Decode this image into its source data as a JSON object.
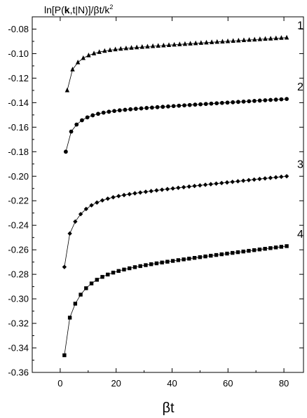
{
  "chart_data": {
    "type": "scatter",
    "title": "",
    "ylabel_parts": [
      "ln[P(",
      "k",
      ",t|N)]/βt/k",
      "2"
    ],
    "xlabel": "βt",
    "xlim": [
      -10,
      87
    ],
    "ylim": [
      -0.36,
      -0.07
    ],
    "x_ticks": [
      0,
      20,
      40,
      60,
      80
    ],
    "x_tick_labels": [
      "0",
      "20",
      "40",
      "60",
      "80"
    ],
    "y_ticks": [
      -0.36,
      -0.34,
      -0.32,
      -0.3,
      -0.28,
      -0.26,
      -0.24,
      -0.22,
      -0.2,
      -0.18,
      -0.16,
      -0.14,
      -0.12,
      -0.1,
      -0.08
    ],
    "y_tick_labels": [
      "-0.36",
      "-0.34",
      "-0.32",
      "-0.30",
      "-0.28",
      "-0.26",
      "-0.24",
      "-0.22",
      "-0.20",
      "-0.18",
      "-0.16",
      "-0.14",
      "-0.12",
      "-0.10",
      "-0.08"
    ],
    "grid": false,
    "series": [
      {
        "label": "1",
        "marker": "triangle",
        "y_start": -0.13,
        "y_end": -0.087,
        "x_start": 2.5,
        "x_end": 81,
        "n": 42,
        "tau": 5.0
      },
      {
        "label": "2",
        "marker": "circle",
        "y_start": -0.18,
        "y_end": -0.137,
        "x_start": 2.0,
        "x_end": 81,
        "n": 42,
        "tau": 5.5
      },
      {
        "label": "3",
        "marker": "diamond",
        "y_start": -0.274,
        "y_end": -0.2,
        "x_start": 1.5,
        "x_end": 81,
        "n": 42,
        "tau": 6.0
      },
      {
        "label": "4",
        "marker": "square",
        "y_start": -0.346,
        "y_end": -0.257,
        "x_start": 1.5,
        "x_end": 81,
        "n": 42,
        "tau": 7.0
      }
    ]
  }
}
